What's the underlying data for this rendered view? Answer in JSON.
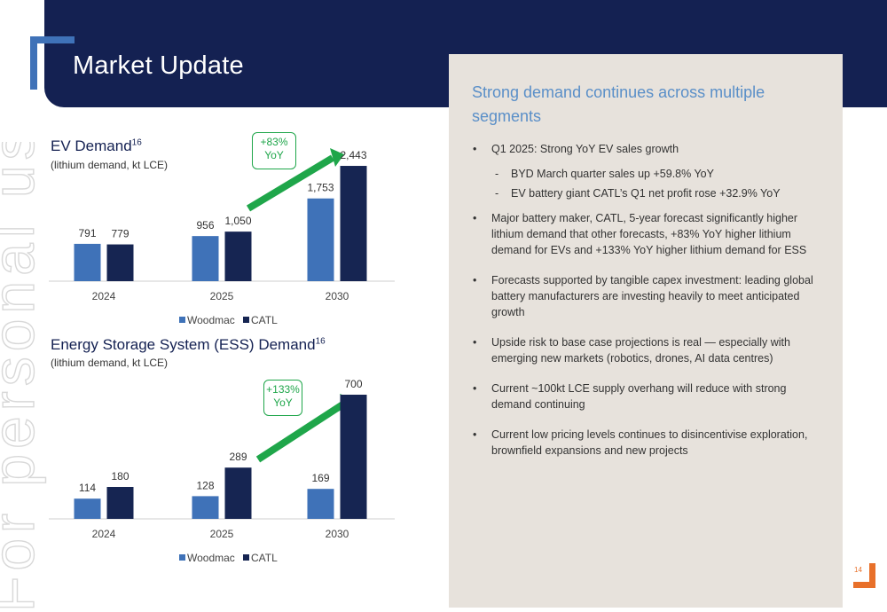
{
  "header": {
    "title": "Market Update"
  },
  "watermark": {
    "text": "For personal use only"
  },
  "ev_chart": {
    "title": "EV Demand",
    "title_sup": "16",
    "subtitle": "(lithium demand, kt LCE)",
    "yoy_label_line1": "+83%",
    "yoy_label_line2": "YoY",
    "legend": [
      "Woodmac",
      "CATL"
    ]
  },
  "ess_chart": {
    "title": "Energy Storage System (ESS) Demand",
    "title_sup": "16",
    "subtitle": "(lithium demand, kt LCE)",
    "yoy_label_line1": "+133%",
    "yoy_label_line2": "YoY",
    "legend": [
      "Woodmac",
      "CATL"
    ]
  },
  "chart_data": [
    {
      "type": "bar",
      "title": "EV Demand",
      "categories": [
        "2024",
        "2025",
        "2030"
      ],
      "series": [
        {
          "name": "Woodmac",
          "values": [
            791,
            956,
            1753
          ],
          "labels": [
            "791",
            "956",
            "1,753"
          ]
        },
        {
          "name": "CATL",
          "values": [
            779,
            1050,
            2443
          ],
          "labels": [
            "779",
            "1,050",
            "2,443"
          ]
        }
      ],
      "ylim": [
        0,
        2500
      ],
      "legend_position": "bottom",
      "grid": false
    },
    {
      "type": "bar",
      "title": "Energy Storage System (ESS) Demand",
      "categories": [
        "2024",
        "2025",
        "2030"
      ],
      "series": [
        {
          "name": "Woodmac",
          "values": [
            114,
            128,
            169
          ],
          "labels": [
            "114",
            "128",
            "169"
          ]
        },
        {
          "name": "CATL",
          "values": [
            180,
            289,
            700
          ],
          "labels": [
            "180",
            "289",
            "700"
          ]
        }
      ],
      "ylim": [
        0,
        720
      ],
      "legend_position": "bottom",
      "grid": false
    }
  ],
  "colors": {
    "navy": "#142152",
    "woodmac": "#3f72b8",
    "catl": "#162552",
    "accent_green": "#1fa64a",
    "accent_orange": "#e8702a",
    "panel": "#e7e2dc",
    "heading_blue": "#5a8fc8"
  },
  "panel": {
    "heading": "Strong demand continues across multiple segments",
    "bullets": [
      {
        "text": "Q1 2025: Strong YoY EV sales growth"
      },
      {
        "text": "BYD March quarter sales up +59.8% YoY",
        "sub": true
      },
      {
        "text": "EV battery giant CATL’s Q1 net profit rose +32.9% YoY",
        "sub": true
      },
      {
        "text": "Major battery maker, CATL, 5-year forecast significantly higher lithium demand that other forecasts, +83% YoY higher lithium demand for EVs and +133% YoY higher lithium demand for ESS"
      },
      {
        "text": "Forecasts supported by tangible capex investment: leading global battery manufacturers are investing heavily to meet anticipated growth"
      },
      {
        "text": "Upside risk to base case projections is real — especially with emerging new markets (robotics, drones, AI data centres)"
      },
      {
        "text": "Current ~100kt LCE supply overhang will reduce with strong demand continuing"
      },
      {
        "text": "Current low pricing levels continues to disincentivise exploration, brownfield expansions and new projects"
      }
    ]
  },
  "footer": {
    "page_number": "14"
  }
}
